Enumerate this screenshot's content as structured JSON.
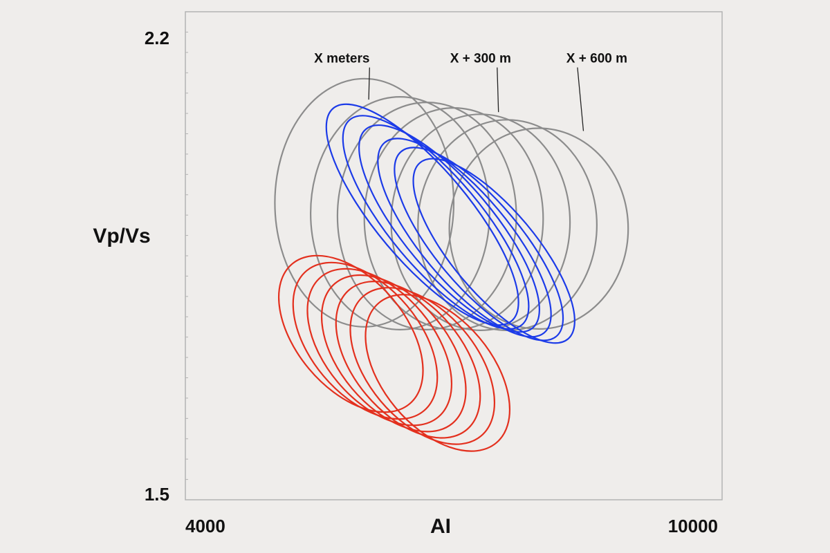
{
  "chart_data": {
    "type": "scatter",
    "title": "",
    "xlabel": "AI",
    "ylabel": "Vp/Vs",
    "xlim": [
      4000,
      10000
    ],
    "ylim": [
      1.5,
      2.2
    ],
    "x_tick_labels": [
      "4000",
      "10000"
    ],
    "y_tick_labels": [
      "2.2",
      "1.5"
    ],
    "grid": false,
    "colors": {
      "gray": "#8c8c8c",
      "blue": "#1c3be8",
      "red": "#e3301e",
      "frame": "#b3b3b3"
    },
    "series": [
      {
        "color": "gray",
        "ellipses": [
          {
            "cx": 6000,
            "cy": 1.926,
            "rx": 1000,
            "ry": 0.178,
            "rot": 0
          },
          {
            "cx": 6400,
            "cy": 1.911,
            "rx": 1000,
            "ry": 0.167,
            "rot": 0
          },
          {
            "cx": 6700,
            "cy": 1.907,
            "rx": 1000,
            "ry": 0.163,
            "rot": 0
          },
          {
            "cx": 7000,
            "cy": 1.903,
            "rx": 1000,
            "ry": 0.159,
            "rot": 0
          },
          {
            "cx": 7300,
            "cy": 1.898,
            "rx": 1000,
            "ry": 0.155,
            "rot": 0
          },
          {
            "cx": 7600,
            "cy": 1.894,
            "rx": 1000,
            "ry": 0.151,
            "rot": 0
          },
          {
            "cx": 7950,
            "cy": 1.889,
            "rx": 1000,
            "ry": 0.144,
            "rot": 0
          }
        ]
      },
      {
        "color": "blue",
        "ellipses": [
          {
            "cx": 6650,
            "cy": 1.909,
            "rx": 520,
            "ry": 0.199,
            "rot": -40
          },
          {
            "cx": 6800,
            "cy": 1.898,
            "rx": 510,
            "ry": 0.192,
            "rot": -40
          },
          {
            "cx": 6950,
            "cy": 1.889,
            "rx": 500,
            "ry": 0.186,
            "rot": -40
          },
          {
            "cx": 7120,
            "cy": 1.876,
            "rx": 490,
            "ry": 0.178,
            "rot": -40
          },
          {
            "cx": 7280,
            "cy": 1.867,
            "rx": 480,
            "ry": 0.173,
            "rot": -40
          },
          {
            "cx": 7450,
            "cy": 1.857,
            "rx": 470,
            "ry": 0.165,
            "rot": -40
          }
        ]
      },
      {
        "color": "red",
        "ellipses": [
          {
            "cx": 5850,
            "cy": 1.738,
            "rx": 610,
            "ry": 0.131,
            "rot": -40
          },
          {
            "cx": 6010,
            "cy": 1.728,
            "rx": 610,
            "ry": 0.131,
            "rot": -40
          },
          {
            "cx": 6170,
            "cy": 1.719,
            "rx": 610,
            "ry": 0.131,
            "rot": -40
          },
          {
            "cx": 6330,
            "cy": 1.71,
            "rx": 610,
            "ry": 0.131,
            "rot": -40
          },
          {
            "cx": 6490,
            "cy": 1.701,
            "rx": 610,
            "ry": 0.131,
            "rot": -40
          },
          {
            "cx": 6650,
            "cy": 1.692,
            "rx": 610,
            "ry": 0.131,
            "rot": -40
          },
          {
            "cx": 6820,
            "cy": 1.682,
            "rx": 610,
            "ry": 0.131,
            "rot": -40
          }
        ]
      }
    ],
    "annotations": [
      {
        "text": "X meters",
        "x": 5750,
        "y": 2.13,
        "arrow_to": [
          6050,
          2.074
        ]
      },
      {
        "text": "X + 300 m",
        "x": 7300,
        "y": 2.13,
        "arrow_to": [
          7500,
          2.056
        ]
      },
      {
        "text": "X + 600 m",
        "x": 8600,
        "y": 2.13,
        "arrow_to": [
          8450,
          2.029
        ]
      }
    ]
  }
}
